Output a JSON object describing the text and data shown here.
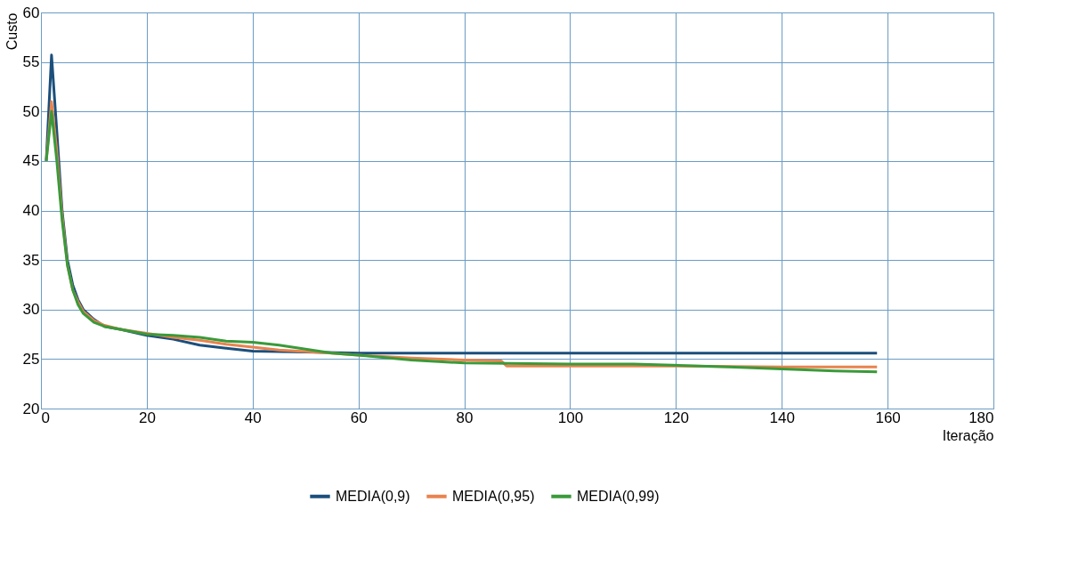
{
  "chart_data": {
    "type": "line",
    "xlabel": "Iteração",
    "ylabel": "Custo",
    "xlim": [
      0,
      180
    ],
    "xticks": [
      0,
      20,
      40,
      60,
      80,
      100,
      120,
      140,
      160,
      180
    ],
    "ylim": [
      20,
      60
    ],
    "yticks": [
      20,
      25,
      30,
      35,
      40,
      45,
      50,
      55,
      60
    ],
    "grid": true,
    "legend": "bottom",
    "marker": "none",
    "line_style": "solid",
    "series": [
      {
        "name": "MEDIA(0,9)",
        "color": "#1b4f7c",
        "x": [
          1,
          2,
          3,
          4,
          5,
          6,
          7,
          8,
          10,
          12,
          15,
          20,
          25,
          30,
          35,
          40,
          50,
          60,
          80,
          100,
          120,
          140,
          158
        ],
        "values": [
          45,
          55.7,
          48,
          40,
          35,
          32.5,
          31,
          30,
          29,
          28.3,
          28,
          27.4,
          27,
          26.4,
          26.1,
          25.8,
          25.7,
          25.6,
          25.6,
          25.6,
          25.6,
          25.6,
          25.6
        ]
      },
      {
        "name": "MEDIA(0,95)",
        "color": "#e8834e",
        "x": [
          1,
          2,
          3,
          4,
          5,
          6,
          7,
          8,
          10,
          12,
          15,
          20,
          25,
          30,
          35,
          40,
          45,
          55,
          60,
          70,
          80,
          87,
          88,
          100,
          120,
          140,
          158
        ],
        "values": [
          45,
          51,
          46,
          39.5,
          34.5,
          32,
          30.8,
          29.8,
          28.9,
          28.4,
          28,
          27.6,
          27.2,
          26.9,
          26.5,
          26.2,
          25.9,
          25.6,
          25.4,
          25.1,
          24.9,
          24.8,
          24.3,
          24.3,
          24.3,
          24.2,
          24.2
        ]
      },
      {
        "name": "MEDIA(0,99)",
        "color": "#3a9a3a",
        "x": [
          1,
          2,
          3,
          4,
          5,
          6,
          7,
          8,
          10,
          12,
          15,
          20,
          25,
          30,
          35,
          40,
          45,
          50,
          55,
          60,
          70,
          80,
          100,
          112,
          130,
          140,
          150,
          158
        ],
        "values": [
          45,
          50,
          45,
          39,
          34.5,
          32,
          30.5,
          29.6,
          28.7,
          28.3,
          28,
          27.5,
          27.4,
          27.2,
          26.8,
          26.7,
          26.4,
          26,
          25.6,
          25.4,
          24.9,
          24.6,
          24.5,
          24.5,
          24.2,
          24,
          23.8,
          23.7
        ]
      }
    ]
  }
}
